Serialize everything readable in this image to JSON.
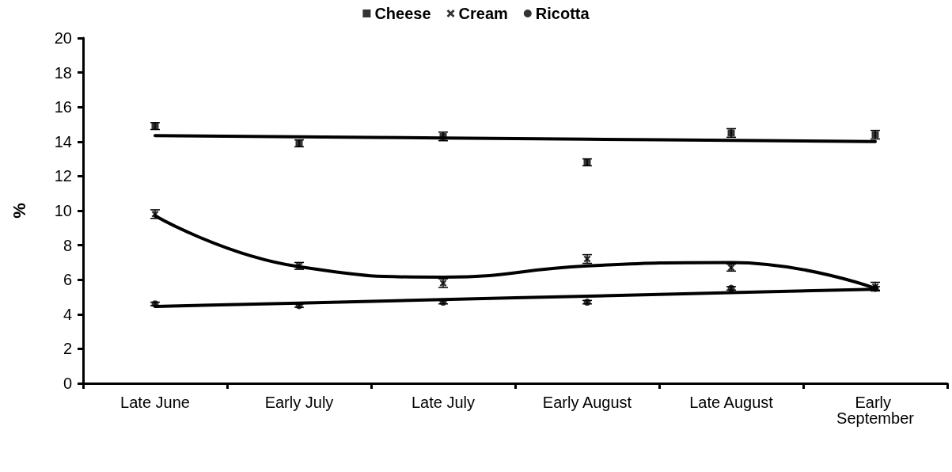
{
  "chart_data": {
    "type": "scatter",
    "ylabel": "%",
    "categories": [
      "Late June",
      "Early July",
      "Late July",
      "Early August",
      "Late August",
      "Early September"
    ],
    "ylim": [
      0,
      20
    ],
    "yticks": [
      0,
      2,
      4,
      6,
      8,
      10,
      12,
      14,
      16,
      18,
      20
    ],
    "grid": false,
    "legend": "top",
    "series": [
      {
        "name": "Cheese",
        "marker": "square",
        "color": "#000000",
        "values": [
          14.9,
          13.9,
          14.3,
          12.8,
          14.5,
          14.4
        ],
        "errors": [
          0.2,
          0.2,
          0.25,
          0.2,
          0.25,
          0.25
        ]
      },
      {
        "name": "Cream",
        "marker": "cross",
        "color": "#000000",
        "values": [
          9.8,
          6.8,
          5.8,
          7.2,
          6.7,
          5.6
        ],
        "errors": [
          0.25,
          0.2,
          0.25,
          0.25,
          0.2,
          0.25
        ]
      },
      {
        "name": "Ricotta",
        "marker": "circle",
        "color": "#000000",
        "values": [
          4.6,
          4.5,
          4.7,
          4.7,
          5.5,
          5.5
        ],
        "errors": [
          0.1,
          0.1,
          0.1,
          0.1,
          0.1,
          0.1
        ]
      },
      {
        "type": "line",
        "marker": "none",
        "color": "#000000",
        "values": [
          14.35,
          14.28,
          14.21,
          14.14,
          14.07,
          14.0
        ]
      },
      {
        "type": "line",
        "marker": "none",
        "color": "#000000",
        "values": [
          9.7,
          6.75,
          6.15,
          6.8,
          7.0,
          5.5
        ]
      },
      {
        "type": "line",
        "marker": "none",
        "color": "#000000",
        "values": [
          4.45,
          4.65,
          4.85,
          5.05,
          5.25,
          5.45
        ]
      }
    ]
  }
}
